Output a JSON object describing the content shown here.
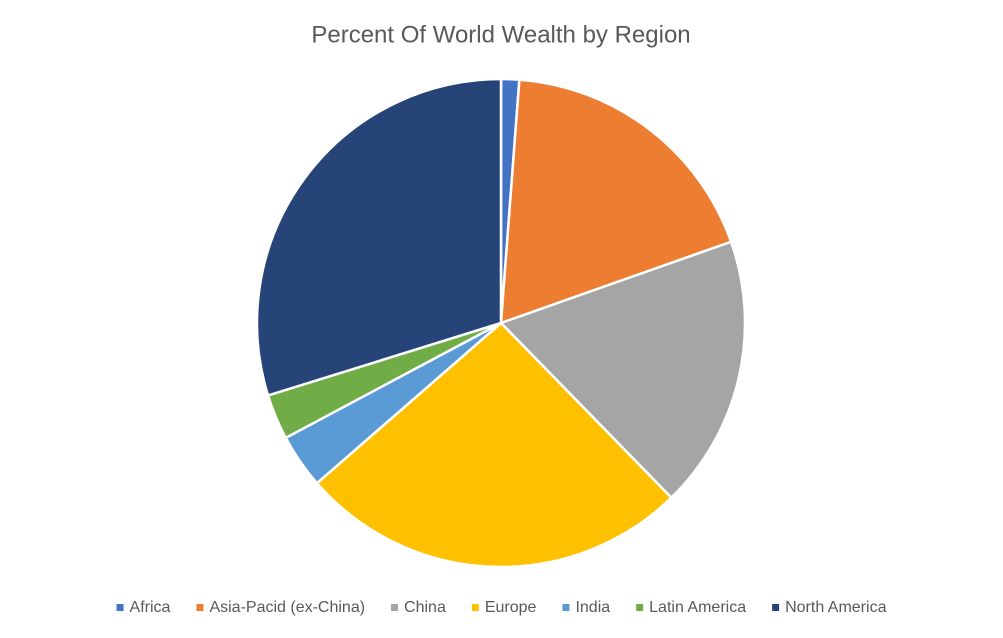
{
  "chart_data": {
    "type": "pie",
    "title": "Percent Of World Wealth by Region",
    "categories": [
      "Africa",
      "Asia-Pacid (ex-China)",
      "China",
      "Europe",
      "India",
      "Latin America",
      "North America"
    ],
    "values": [
      1.2,
      18.4,
      18.1,
      25.9,
      3.6,
      3.0,
      29.8
    ],
    "colors": [
      "#4472c4",
      "#ed7d31",
      "#a5a5a5",
      "#ffc000",
      "#5b9bd5",
      "#70ad47",
      "#264478"
    ],
    "legend": "bottom"
  }
}
